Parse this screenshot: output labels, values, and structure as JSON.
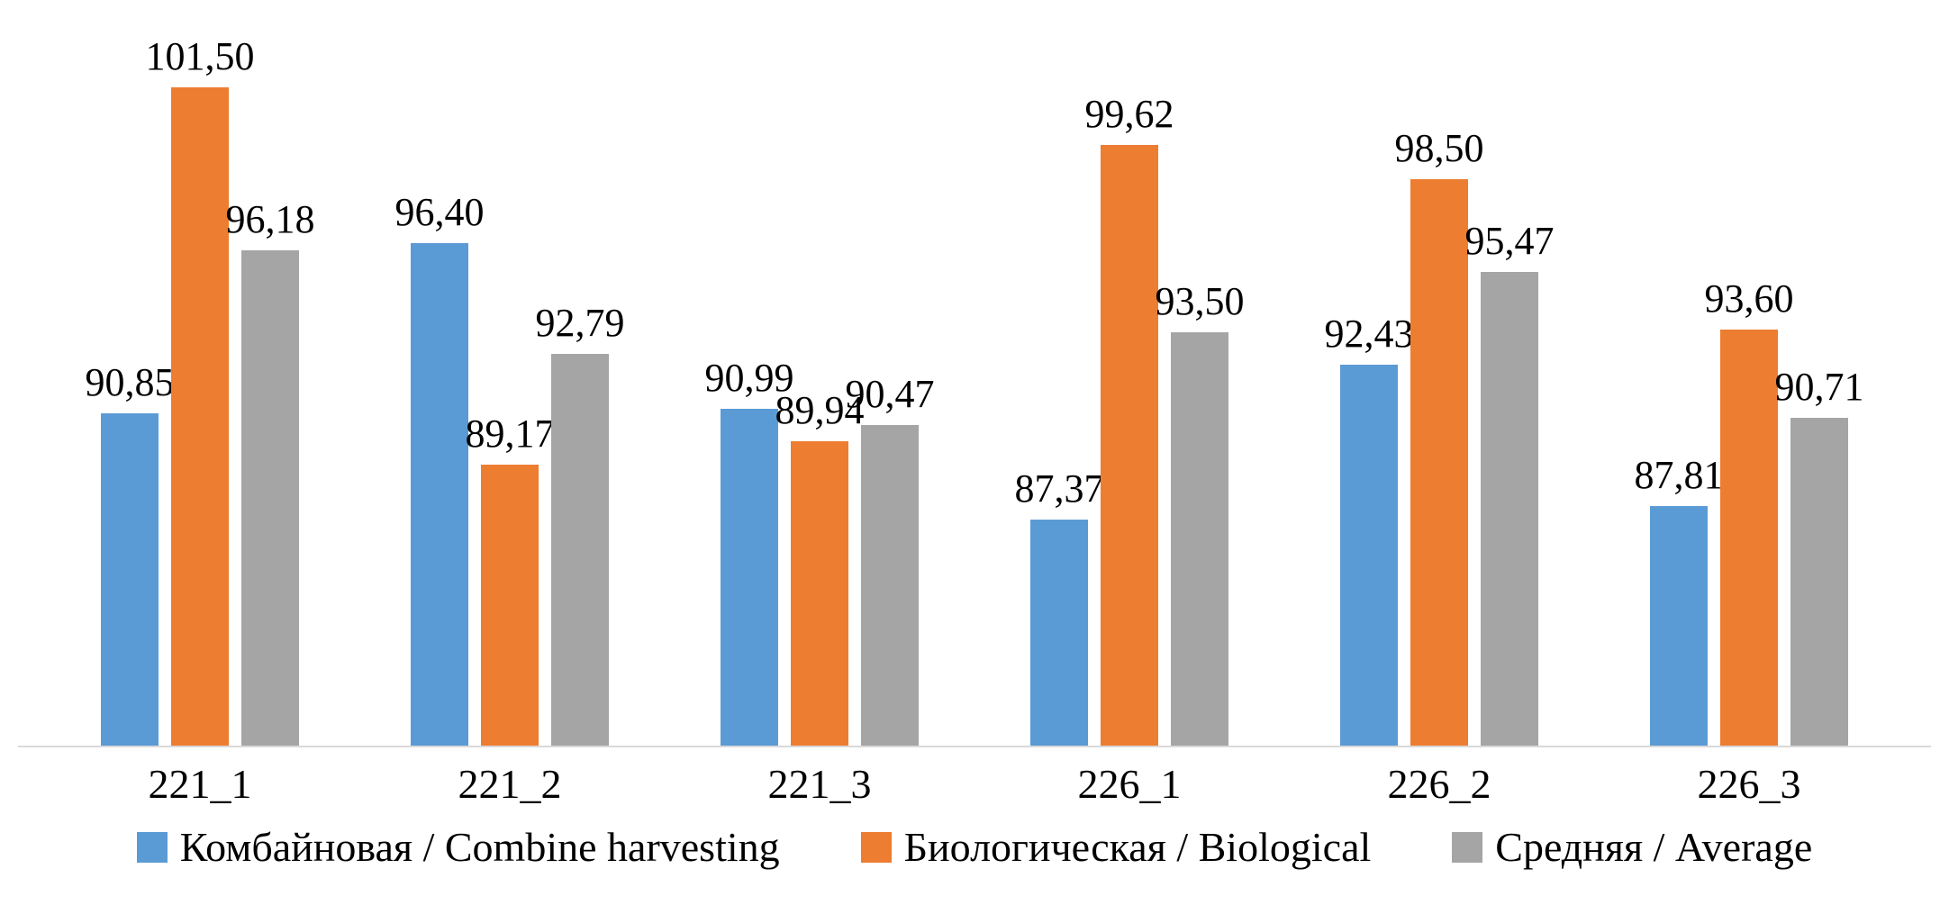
{
  "chart_data": {
    "type": "bar",
    "title": "",
    "xlabel": "",
    "ylabel": "",
    "categories": [
      "221_1",
      "221_2",
      "221_3",
      "226_1",
      "226_2",
      "226_3"
    ],
    "series": [
      {
        "name": "Комбайновая / Combine harvesting",
        "color": "#5B9BD5",
        "values": [
          90.85,
          96.4,
          90.99,
          87.37,
          92.43,
          87.81
        ],
        "labels": [
          "90,85",
          "96,40",
          "90,99",
          "87,37",
          "92,43",
          "87,81"
        ]
      },
      {
        "name": "Биологическая / Biological",
        "color": "#ED7D31",
        "values": [
          101.5,
          89.17,
          89.94,
          99.62,
          98.5,
          93.6
        ],
        "labels": [
          "101,50",
          "89,17",
          "89,94",
          "99,62",
          "98,50",
          "93,60"
        ]
      },
      {
        "name": "Средняя / Average",
        "color": "#A5A5A5",
        "values": [
          96.18,
          92.79,
          90.47,
          93.5,
          95.47,
          90.71
        ],
        "labels": [
          "96,18",
          "92,79",
          "90,47",
          "93,50",
          "95,47",
          "90,71"
        ]
      }
    ],
    "baseline": 80,
    "ylim": [
      80,
      105
    ],
    "grid": false,
    "y_axis_visible": false,
    "data_labels_visible": true,
    "decimal_separator": ",",
    "legend_position": "bottom",
    "axis_line_color": "#D9D9D9",
    "text_color": "#000000"
  }
}
